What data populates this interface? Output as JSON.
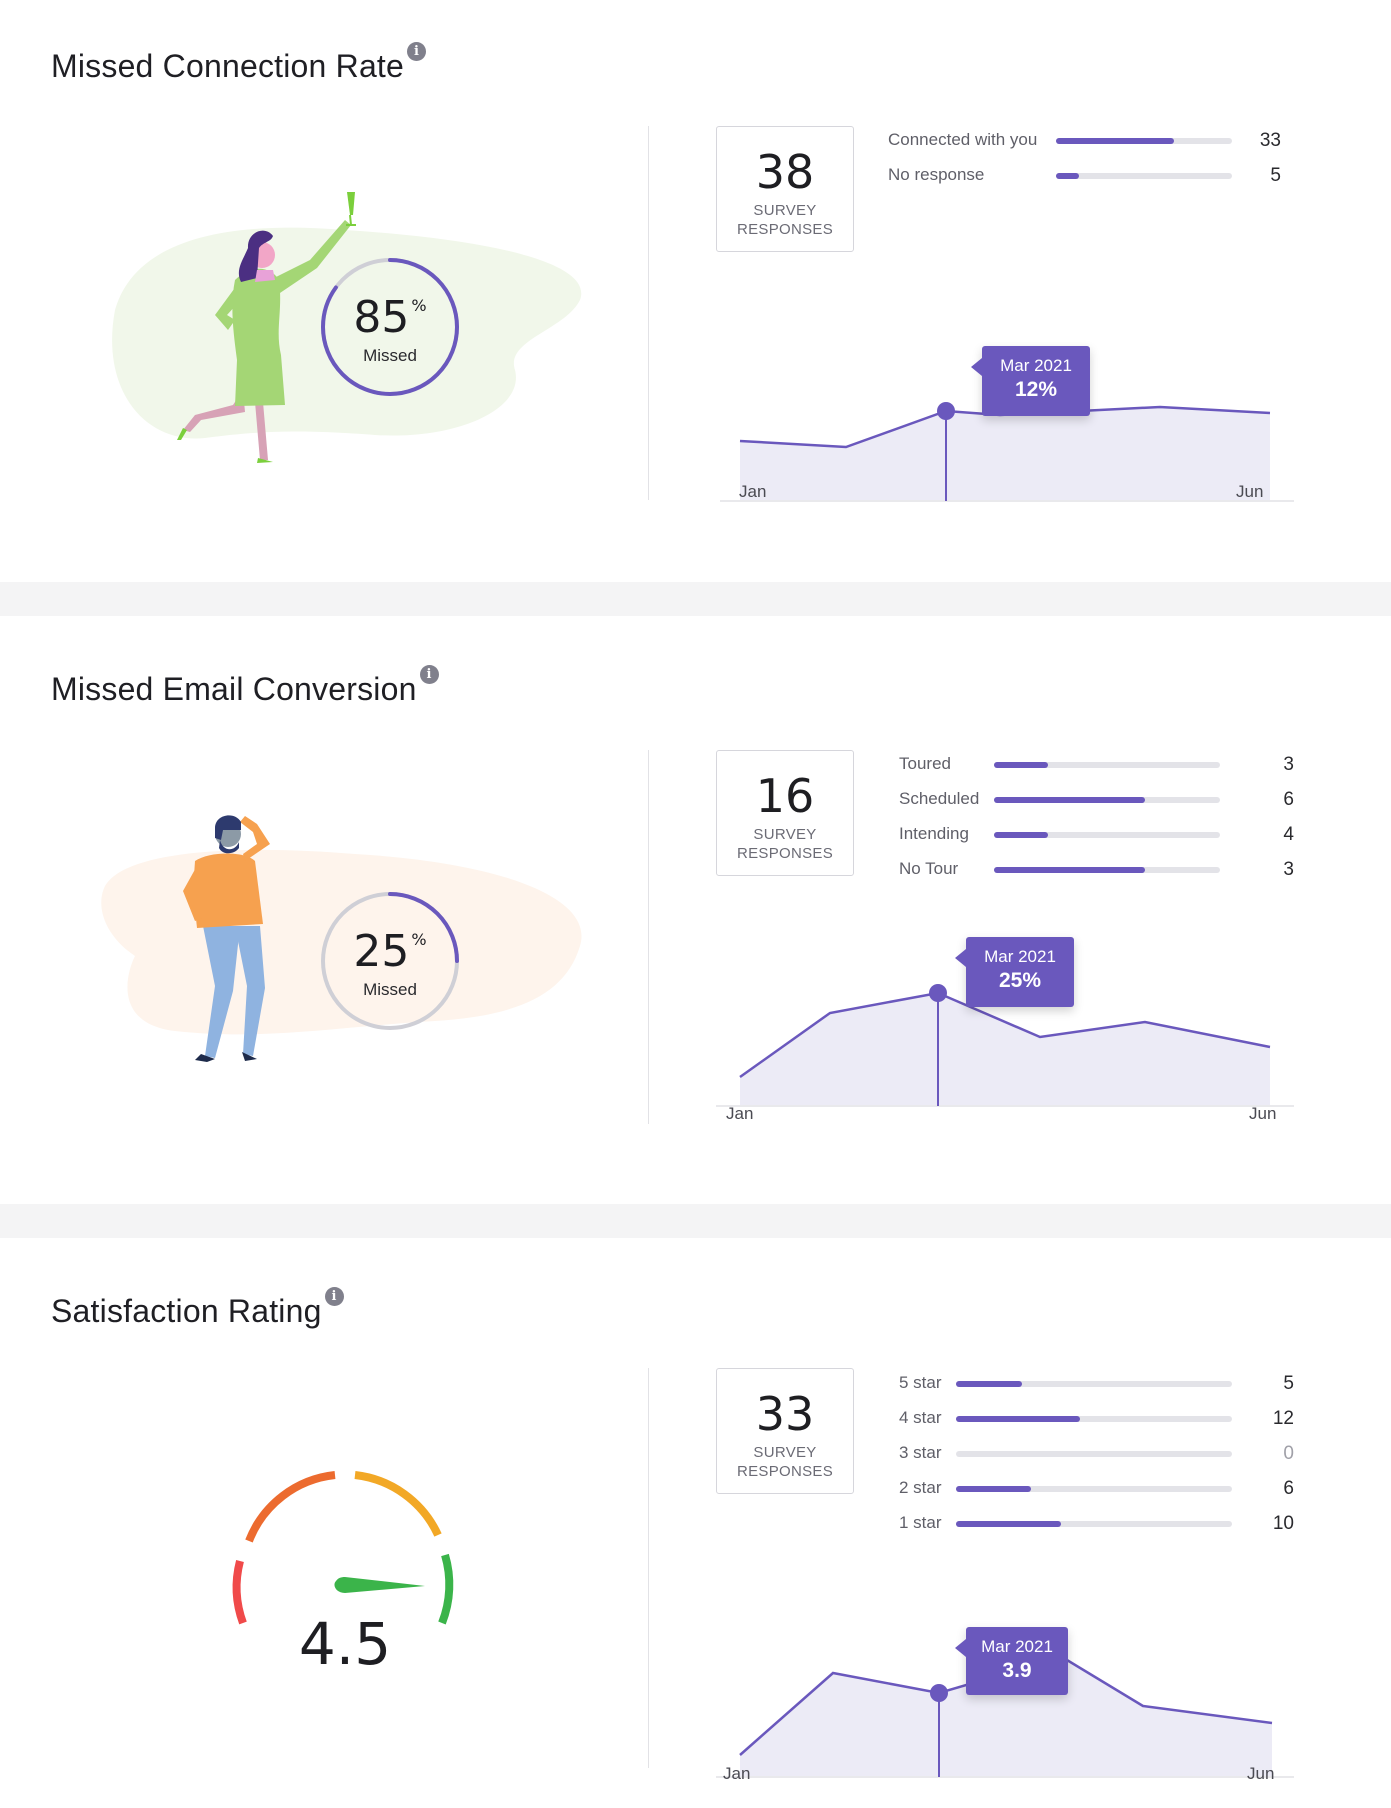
{
  "sections": [
    {
      "title": "Missed Connection Rate",
      "metric": {
        "value": "85",
        "unit": "%",
        "label": "Missed",
        "fraction": 0.85
      },
      "responses": {
        "count": "38",
        "label_line1": "SURVEY",
        "label_line2": "RESPONSES"
      },
      "breakdown": [
        {
          "label": "Connected with you",
          "value": "33",
          "fraction": 0.67
        },
        {
          "label": "No response",
          "value": "5",
          "fraction": 0.13
        }
      ],
      "chart_data": {
        "type": "area",
        "x_labels": [
          "Jan",
          "Jun"
        ],
        "tooltip": {
          "date": "Mar 2021",
          "value": "12%"
        }
      }
    },
    {
      "title": "Missed Email Conversion",
      "metric": {
        "value": "25",
        "unit": "%",
        "label": "Missed",
        "fraction": 0.25
      },
      "responses": {
        "count": "16",
        "label_line1": "SURVEY",
        "label_line2": "RESPONSES"
      },
      "breakdown": [
        {
          "label": "Toured",
          "value": "3",
          "fraction": 0.24
        },
        {
          "label": "Scheduled",
          "value": "6",
          "fraction": 0.67
        },
        {
          "label": "Intending",
          "value": "4",
          "fraction": 0.24
        },
        {
          "label": "No Tour",
          "value": "3",
          "fraction": 0.67
        }
      ],
      "chart_data": {
        "type": "area",
        "x_labels": [
          "Jan",
          "Jun"
        ],
        "tooltip": {
          "date": "Mar 2021",
          "value": "25%"
        }
      }
    },
    {
      "title": "Satisfaction Rating",
      "metric": {
        "value": "4.5"
      },
      "responses": {
        "count": "33",
        "label_line1": "SURVEY",
        "label_line2": "RESPONSES"
      },
      "breakdown": [
        {
          "label": "5 star",
          "value": "5",
          "fraction": 0.24
        },
        {
          "label": "4 star",
          "value": "12",
          "fraction": 0.45
        },
        {
          "label": "3 star",
          "value": "0",
          "fraction": 0
        },
        {
          "label": "2 star",
          "value": "6",
          "fraction": 0.27
        },
        {
          "label": "1 star",
          "value": "10",
          "fraction": 0.38
        }
      ],
      "chart_data": {
        "type": "area",
        "x_labels": [
          "Jan",
          "Jun"
        ],
        "tooltip": {
          "date": "Mar 2021",
          "value": "3.9"
        }
      }
    }
  ],
  "colors": {
    "accent": "#6a58bd",
    "track": "#e3e3e8",
    "area_fill": "#ecebf6"
  }
}
